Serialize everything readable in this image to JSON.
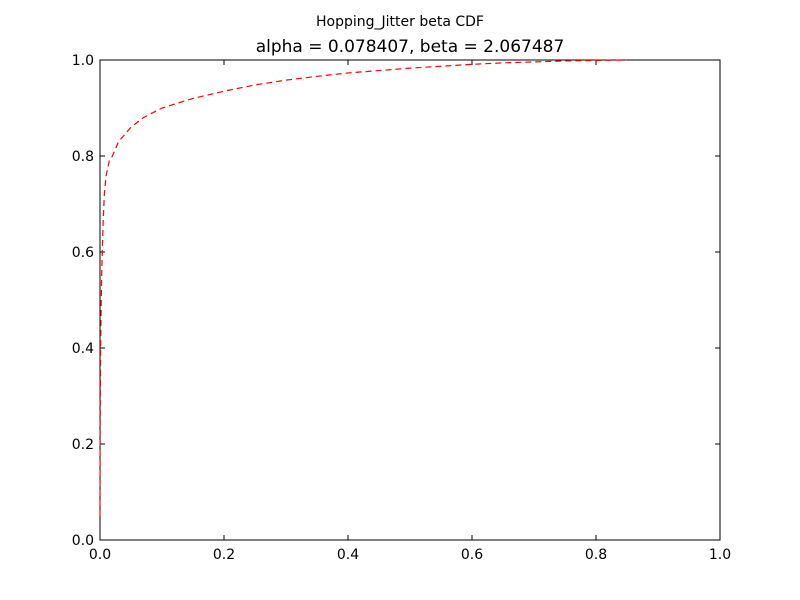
{
  "chart_data": {
    "type": "line",
    "suptitle": "Hopping_Jitter beta CDF",
    "title": "alpha = 0.078407, beta = 2.067487",
    "xlabel": "",
    "ylabel": "",
    "xlim": [
      0.0,
      1.0
    ],
    "ylim": [
      0.0,
      1.0
    ],
    "grid": false,
    "x_ticks": [
      "0.0",
      "0.2",
      "0.4",
      "0.6",
      "0.8",
      "1.0"
    ],
    "y_ticks": [
      "0.0",
      "0.2",
      "0.4",
      "0.6",
      "0.8",
      "1.0"
    ],
    "series": [
      {
        "line_color": "#ff0000",
        "line_style": "dashed",
        "x": [
          0.0,
          0.0002,
          0.0005,
          0.001,
          0.002,
          0.003,
          0.005,
          0.007,
          0.01,
          0.015,
          0.02,
          0.03,
          0.05,
          0.07,
          0.1,
          0.15,
          0.2,
          0.25,
          0.3,
          0.35,
          0.4,
          0.45,
          0.5,
          0.55,
          0.6,
          0.65,
          0.7,
          0.75,
          0.8,
          0.85
        ],
        "y": [
          0.05,
          0.2,
          0.3,
          0.4,
          0.5,
          0.57,
          0.66,
          0.72,
          0.76,
          0.79,
          0.8,
          0.83,
          0.86,
          0.88,
          0.9,
          0.92,
          0.935,
          0.948,
          0.958,
          0.966,
          0.973,
          0.978,
          0.983,
          0.987,
          0.991,
          0.994,
          0.996,
          0.998,
          0.999,
          1.0
        ]
      }
    ]
  }
}
